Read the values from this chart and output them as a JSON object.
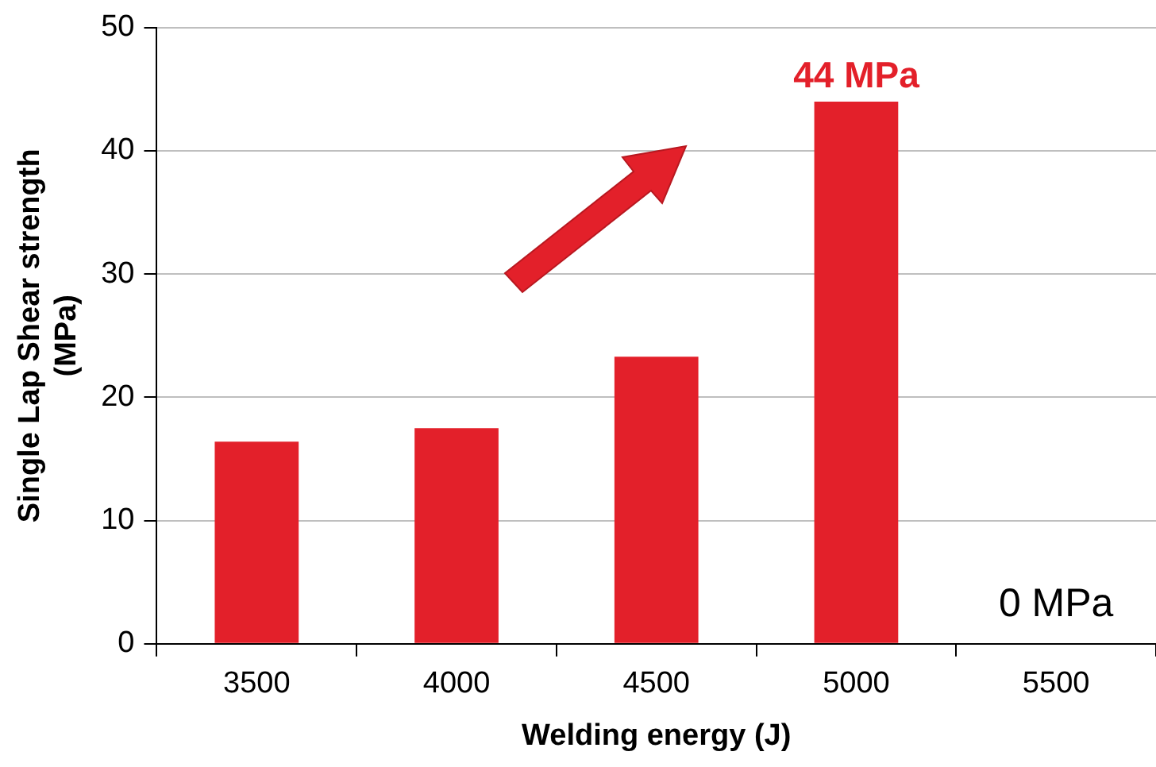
{
  "chart_data": {
    "type": "bar",
    "xlabel": "Welding energy (J)",
    "ylabel": "Single Lap Shear strength (MPa)",
    "categories": [
      "3500",
      "4000",
      "4500",
      "5000",
      "5500"
    ],
    "values": [
      16.4,
      17.5,
      23.3,
      44,
      0
    ],
    "value_labels": [
      null,
      null,
      null,
      "44 MPa",
      "0 MPa"
    ],
    "color": "#e3202a",
    "ylim": [
      0,
      50
    ],
    "yticks": [
      0,
      10,
      20,
      30,
      40,
      50
    ],
    "grid": "y"
  }
}
